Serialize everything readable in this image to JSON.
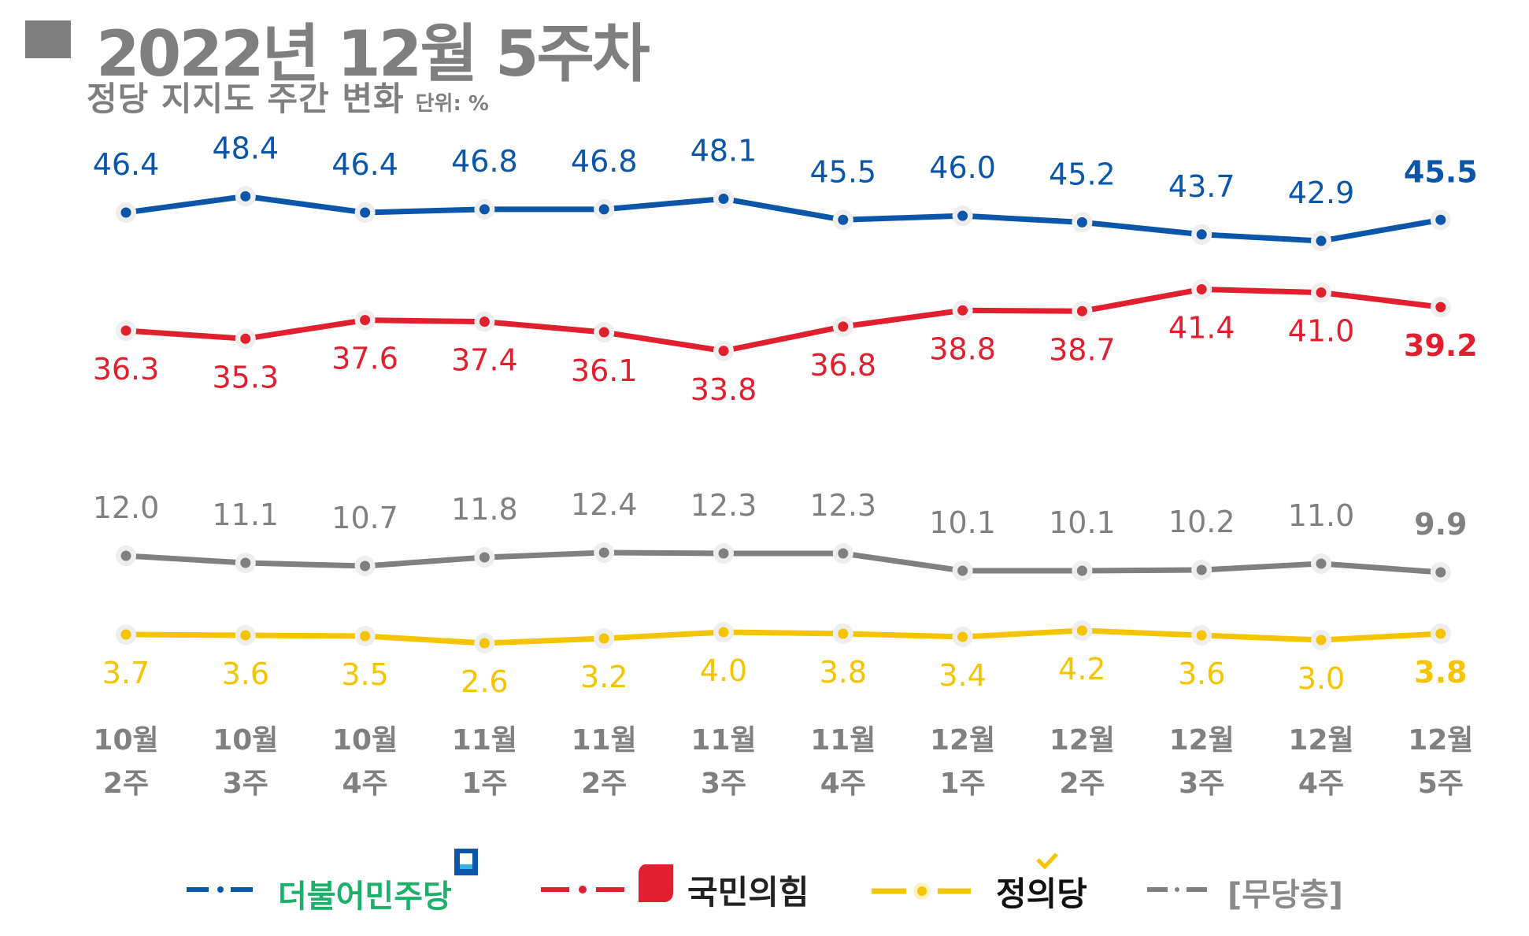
{
  "header": {
    "title": "2022년 12월 5주차",
    "subtitle": "정당 지지도 주간 변화",
    "unit": "단위: %"
  },
  "chart_data": {
    "type": "line",
    "title": "정당 지지도 주간 변화",
    "unit": "%",
    "categories": [
      [
        "10월",
        "2주"
      ],
      [
        "10월",
        "3주"
      ],
      [
        "10월",
        "4주"
      ],
      [
        "11월",
        "1주"
      ],
      [
        "11월",
        "2주"
      ],
      [
        "11월",
        "3주"
      ],
      [
        "11월",
        "4주"
      ],
      [
        "12월",
        "1주"
      ],
      [
        "12월",
        "2주"
      ],
      [
        "12월",
        "3주"
      ],
      [
        "12월",
        "4주"
      ],
      [
        "12월",
        "5주"
      ]
    ],
    "series": [
      {
        "name": "더불어민주당",
        "color": "#0b56a8",
        "values": [
          46.4,
          48.4,
          46.4,
          46.8,
          46.8,
          48.1,
          45.5,
          46.0,
          45.2,
          43.7,
          42.9,
          45.5
        ],
        "labels": [
          "46.4",
          "48.4",
          "46.4",
          "46.8",
          "46.8",
          "48.1",
          "45.5",
          "46.0",
          "45.2",
          "43.7",
          "42.9",
          "45.5"
        ],
        "label_position": "above"
      },
      {
        "name": "국민의힘",
        "color": "#e0202e",
        "values": [
          36.3,
          35.3,
          37.6,
          37.4,
          36.1,
          33.8,
          36.8,
          38.8,
          38.7,
          41.4,
          41.0,
          39.2
        ],
        "labels": [
          "36.3",
          "35.3",
          "37.6",
          "37.4",
          "36.1",
          "33.8",
          "36.8",
          "38.8",
          "38.7",
          "41.4",
          "41.0",
          "39.2"
        ],
        "label_position": "below"
      },
      {
        "name": "[무당층]",
        "color": "#808080",
        "values": [
          12.0,
          11.1,
          10.7,
          11.8,
          12.4,
          12.3,
          12.3,
          10.1,
          10.1,
          10.2,
          11.0,
          9.9
        ],
        "labels": [
          "12.0",
          "11.1",
          "10.7",
          "11.8",
          "12.4",
          "12.3",
          "12.3",
          "10.1",
          "10.1",
          "10.2",
          "11.0",
          "9.9"
        ],
        "label_position": "above"
      },
      {
        "name": "정의당",
        "color": "#f5c400",
        "values": [
          3.7,
          3.6,
          3.5,
          2.6,
          3.2,
          4.0,
          3.8,
          3.4,
          4.2,
          3.6,
          3.0,
          3.8
        ],
        "labels": [
          "3.7",
          "3.6",
          "3.5",
          "2.6",
          "3.2",
          "4.0",
          "3.8",
          "3.4",
          "4.2",
          "3.6",
          "3.0",
          "3.8"
        ],
        "label_position": "below"
      }
    ],
    "legend": [
      "더불어민주당",
      "국민의힘",
      "정의당",
      "[무당층]"
    ],
    "legend_position": "bottom",
    "grid": false
  }
}
